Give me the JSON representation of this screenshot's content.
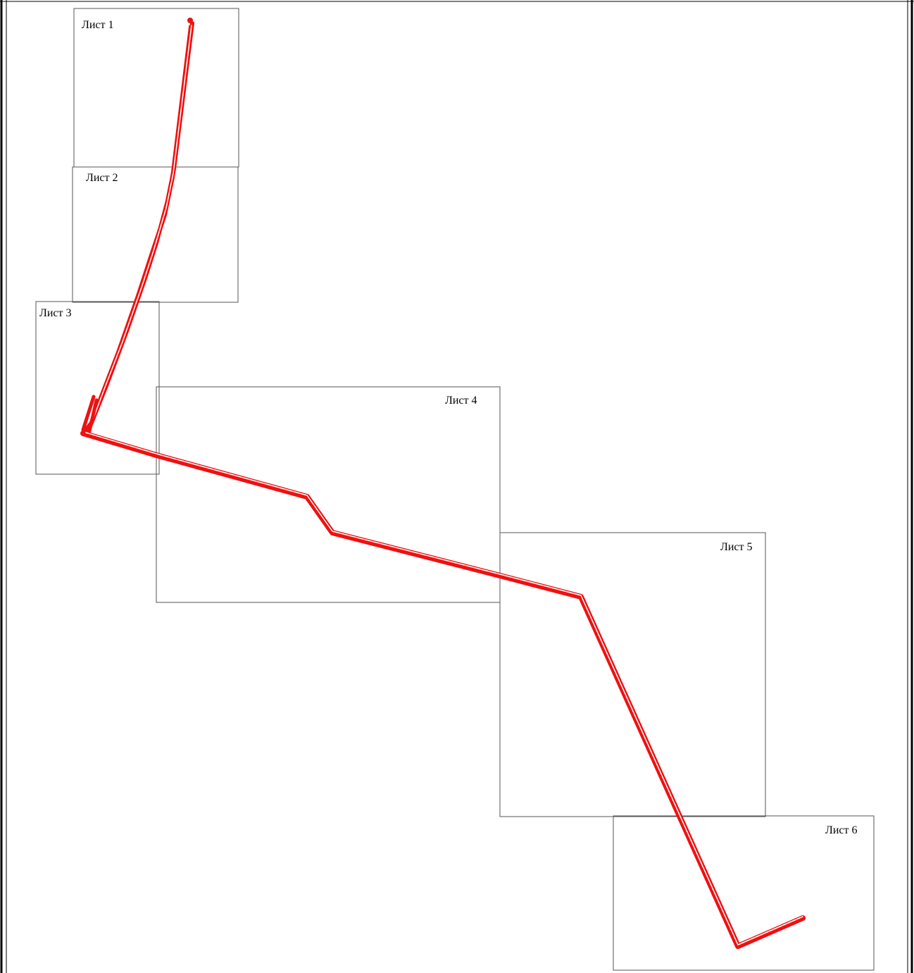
{
  "map": {
    "sheets": [
      {
        "id": "sheet-1",
        "label": "Лист 1"
      },
      {
        "id": "sheet-2",
        "label": "Лист 2"
      },
      {
        "id": "sheet-3",
        "label": "Лист 3"
      },
      {
        "id": "sheet-4",
        "label": "Лист 4"
      },
      {
        "id": "sheet-5",
        "label": "Лист 5"
      },
      {
        "id": "sheet-6",
        "label": "Лист 6"
      }
    ],
    "colors": {
      "route": "#ee1111",
      "route_highlight": "#ffffff",
      "sheet_border": "#555555",
      "frame_border": "#000000",
      "background": "#ffffff"
    }
  }
}
